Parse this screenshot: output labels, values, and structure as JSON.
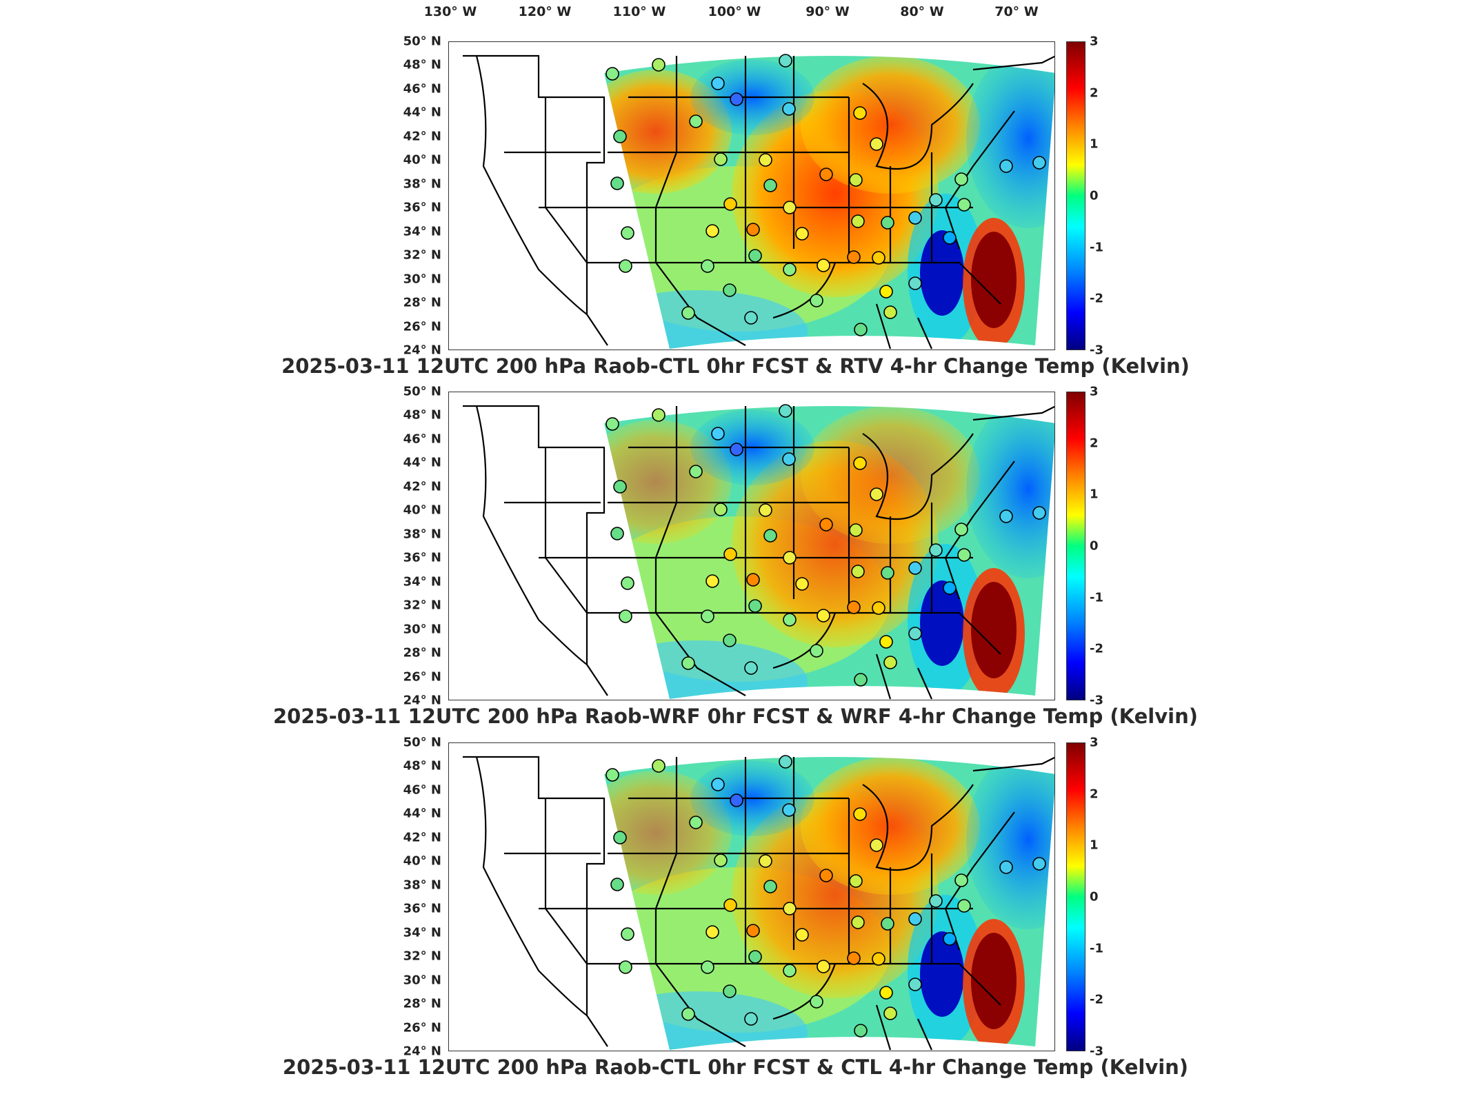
{
  "lon_labels": [
    "130° W",
    "120° W",
    "110° W",
    "100° W",
    "90° W",
    "80° W",
    "70° W"
  ],
  "lat_labels": [
    "50° N",
    "48° N",
    "46° N",
    "44° N",
    "42° N",
    "40° N",
    "38° N",
    "36° N",
    "34° N",
    "32° N",
    "30° N",
    "28° N",
    "26° N",
    "24° N"
  ],
  "colorbar": {
    "ticks": [
      "3",
      "2",
      "1",
      "0",
      "-1",
      "-2",
      "-3"
    ],
    "range": [
      -3,
      3
    ],
    "colormap": "jet"
  },
  "panels": [
    {
      "title": "2025-03-11 12UTC 200 hPa Raob-CTL 0hr FCST & RTV 4-hr Change Temp (Kelvin)"
    },
    {
      "title": "2025-03-11 12UTC 200 hPa Raob-WRF 0hr FCST & WRF 4-hr Change Temp (Kelvin)"
    },
    {
      "title": "2025-03-11 12UTC 200 hPa Raob-CTL 0hr FCST & CTL 4-hr Change Temp (Kelvin)"
    }
  ],
  "colors": {
    "warm": "#ff6600",
    "cold": "#0040ff",
    "neutral": "#33ddaa",
    "extreme_warm": "#8b0000",
    "extreme_cold": "#00009a"
  }
}
